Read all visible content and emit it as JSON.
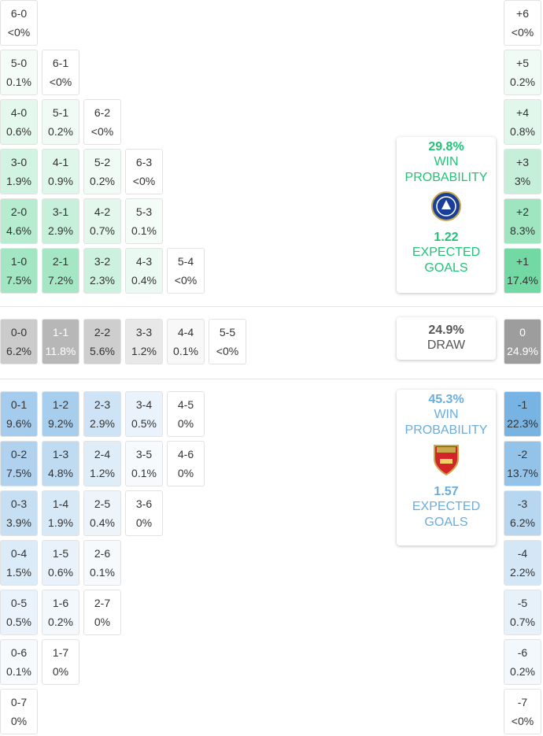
{
  "home": {
    "rows": [
      [
        {
          "score": "6-0",
          "prob": "<0%"
        }
      ],
      [
        {
          "score": "5-0",
          "prob": "0.1%"
        },
        {
          "score": "6-1",
          "prob": "<0%"
        }
      ],
      [
        {
          "score": "4-0",
          "prob": "0.6%"
        },
        {
          "score": "5-1",
          "prob": "0.2%"
        },
        {
          "score": "6-2",
          "prob": "<0%"
        }
      ],
      [
        {
          "score": "3-0",
          "prob": "1.9%"
        },
        {
          "score": "4-1",
          "prob": "0.9%"
        },
        {
          "score": "5-2",
          "prob": "0.2%"
        },
        {
          "score": "6-3",
          "prob": "<0%"
        }
      ],
      [
        {
          "score": "2-0",
          "prob": "4.6%"
        },
        {
          "score": "3-1",
          "prob": "2.9%"
        },
        {
          "score": "4-2",
          "prob": "0.7%"
        },
        {
          "score": "5-3",
          "prob": "0.1%"
        }
      ],
      [
        {
          "score": "1-0",
          "prob": "7.5%"
        },
        {
          "score": "2-1",
          "prob": "7.2%"
        },
        {
          "score": "3-2",
          "prob": "2.3%"
        },
        {
          "score": "4-3",
          "prob": "0.4%"
        },
        {
          "score": "5-4",
          "prob": "<0%"
        }
      ]
    ],
    "margins": [
      {
        "diff": "+6",
        "prob": "<0%"
      },
      {
        "diff": "+5",
        "prob": "0.2%"
      },
      {
        "diff": "+4",
        "prob": "0.8%"
      },
      {
        "diff": "+3",
        "prob": "3%"
      },
      {
        "diff": "+2",
        "prob": "8.3%"
      },
      {
        "diff": "+1",
        "prob": "17.4%"
      }
    ],
    "card": {
      "probability": "29.8%",
      "label": "WIN PROBABILITY",
      "expected_goals": "1.22",
      "xg_label": "EXPECTED GOALS"
    }
  },
  "draw": {
    "rows": [
      [
        {
          "score": "0-0",
          "prob": "6.2%"
        },
        {
          "score": "1-1",
          "prob": "11.8%"
        },
        {
          "score": "2-2",
          "prob": "5.6%"
        },
        {
          "score": "3-3",
          "prob": "1.2%"
        },
        {
          "score": "4-4",
          "prob": "0.1%"
        },
        {
          "score": "5-5",
          "prob": "<0%"
        }
      ]
    ],
    "margins": [
      {
        "diff": "0",
        "prob": "24.9%"
      }
    ],
    "card": {
      "probability": "24.9%",
      "label": "DRAW"
    }
  },
  "away": {
    "rows": [
      [
        {
          "score": "0-1",
          "prob": "9.6%"
        },
        {
          "score": "1-2",
          "prob": "9.2%"
        },
        {
          "score": "2-3",
          "prob": "2.9%"
        },
        {
          "score": "3-4",
          "prob": "0.5%"
        },
        {
          "score": "4-5",
          "prob": "0%"
        }
      ],
      [
        {
          "score": "0-2",
          "prob": "7.5%"
        },
        {
          "score": "1-3",
          "prob": "4.8%"
        },
        {
          "score": "2-4",
          "prob": "1.2%"
        },
        {
          "score": "3-5",
          "prob": "0.1%"
        },
        {
          "score": "4-6",
          "prob": "0%"
        }
      ],
      [
        {
          "score": "0-3",
          "prob": "3.9%"
        },
        {
          "score": "1-4",
          "prob": "1.9%"
        },
        {
          "score": "2-5",
          "prob": "0.4%"
        },
        {
          "score": "3-6",
          "prob": "0%"
        }
      ],
      [
        {
          "score": "0-4",
          "prob": "1.5%"
        },
        {
          "score": "1-5",
          "prob": "0.6%"
        },
        {
          "score": "2-6",
          "prob": "0.1%"
        }
      ],
      [
        {
          "score": "0-5",
          "prob": "0.5%"
        },
        {
          "score": "1-6",
          "prob": "0.2%"
        },
        {
          "score": "2-7",
          "prob": "0%"
        }
      ],
      [
        {
          "score": "0-6",
          "prob": "0.1%"
        },
        {
          "score": "1-7",
          "prob": "0%"
        }
      ],
      [
        {
          "score": "0-7",
          "prob": "0%"
        }
      ]
    ],
    "margins": [
      {
        "diff": "-1",
        "prob": "22.3%"
      },
      {
        "diff": "-2",
        "prob": "13.7%"
      },
      {
        "diff": "-3",
        "prob": "6.2%"
      },
      {
        "diff": "-4",
        "prob": "2.2%"
      },
      {
        "diff": "-5",
        "prob": "0.7%"
      },
      {
        "diff": "-6",
        "prob": "0.2%"
      },
      {
        "diff": "-7",
        "prob": "<0%"
      }
    ],
    "card": {
      "probability": "45.3%",
      "label": "WIN PROBABILITY",
      "expected_goals": "1.57",
      "xg_label": "EXPECTED GOALS"
    }
  }
}
